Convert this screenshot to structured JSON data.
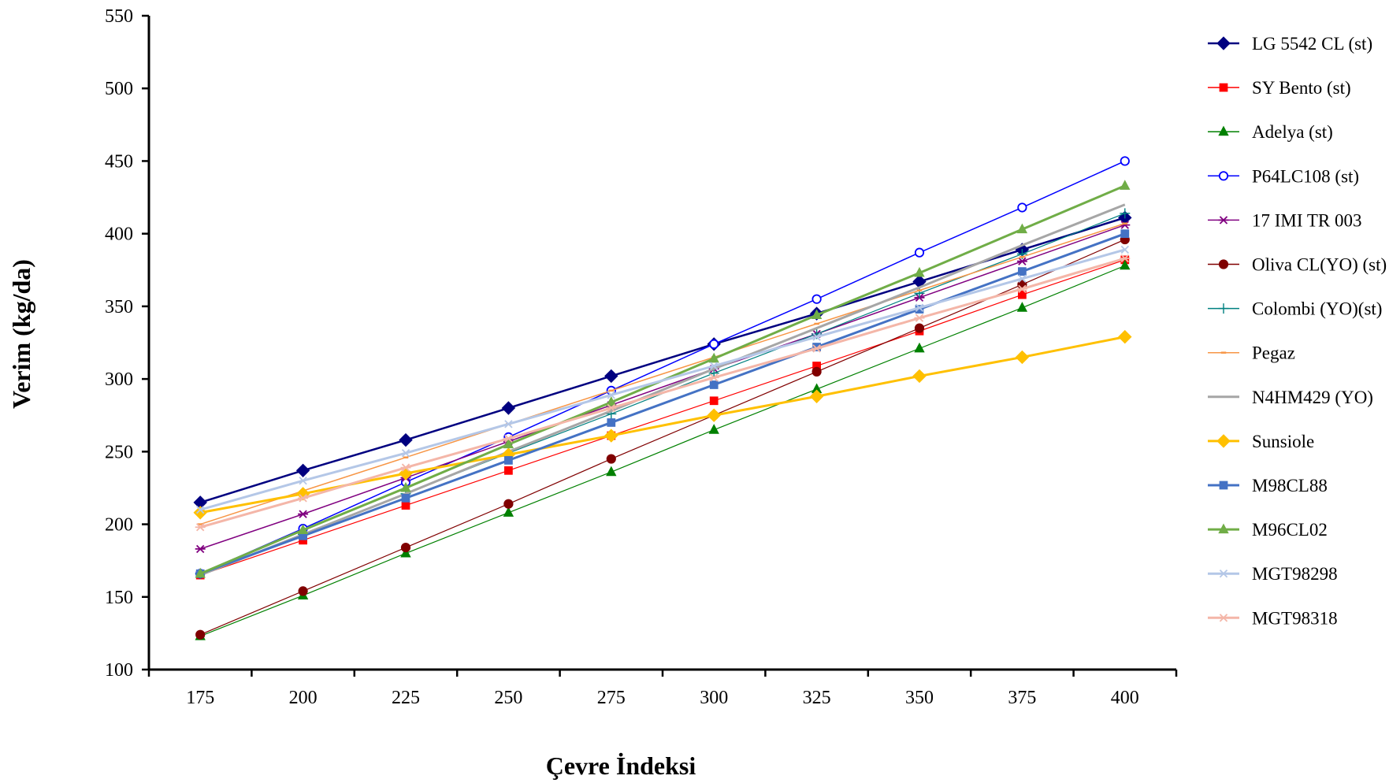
{
  "chart_data": {
    "type": "line",
    "title": "",
    "xlabel": "Çevre İndeksi",
    "ylabel": "Verim (kg/da)",
    "x": [
      175,
      200,
      225,
      250,
      275,
      300,
      325,
      350,
      375,
      400
    ],
    "ylim": [
      100,
      550
    ],
    "yticks": [
      100,
      150,
      200,
      250,
      300,
      350,
      400,
      450,
      500,
      550
    ],
    "grid": false,
    "legend_position": "right",
    "series": [
      {
        "name": "LG 5542 CL (st)",
        "color": "#000080",
        "marker": "diamond",
        "marker_fill": "filled",
        "width": 2.5,
        "values": [
          215,
          237,
          258,
          280,
          302,
          324,
          345,
          367,
          389,
          411
        ]
      },
      {
        "name": "SY Bento (st)",
        "color": "#FF0000",
        "marker": "square",
        "marker_fill": "filled",
        "width": 1.2,
        "values": [
          165,
          189,
          213,
          237,
          261,
          285,
          309,
          333,
          358,
          382
        ]
      },
      {
        "name": "Adelya (st)",
        "color": "#008000",
        "marker": "triangle",
        "marker_fill": "filled",
        "width": 1.2,
        "values": [
          123,
          151,
          180,
          208,
          236,
          265,
          293,
          321,
          349,
          378
        ]
      },
      {
        "name": "P64LC108 (st)",
        "color": "#0000FF",
        "marker": "circle",
        "marker_fill": "open",
        "width": 1.5,
        "values": [
          166,
          197,
          229,
          260,
          292,
          324,
          355,
          387,
          418,
          450
        ]
      },
      {
        "name": "17 IMI TR 003",
        "color": "#800080",
        "marker": "star",
        "marker_fill": "open",
        "width": 1.5,
        "values": [
          183,
          207,
          232,
          257,
          282,
          307,
          331,
          356,
          381,
          406
        ]
      },
      {
        "name": "Oliva CL(YO) (st)",
        "color": "#800000",
        "marker": "circle",
        "marker_fill": "filled",
        "width": 1.2,
        "values": [
          124,
          154,
          184,
          214,
          245,
          275,
          305,
          335,
          365,
          396
        ]
      },
      {
        "name": "Colombi (YO)(st)",
        "color": "#008080",
        "marker": "plus",
        "marker_fill": "open",
        "width": 1.2,
        "values": [
          166,
          193,
          221,
          249,
          276,
          304,
          331,
          359,
          386,
          414
        ]
      },
      {
        "name": "Pegaz",
        "color": "#F79646",
        "marker": "dash",
        "marker_fill": "filled",
        "width": 1.5,
        "values": [
          200,
          223,
          246,
          269,
          292,
          315,
          338,
          361,
          384,
          407
        ]
      },
      {
        "name": "N4HM429 (YO)",
        "color": "#A6A6A6",
        "marker": "line",
        "marker_fill": "open",
        "width": 3,
        "values": [
          165,
          193,
          221,
          250,
          278,
          307,
          335,
          363,
          392,
          420
        ]
      },
      {
        "name": "Sunsiole",
        "color": "#FFC000",
        "marker": "diamond",
        "marker_fill": "filled",
        "width": 3,
        "values": [
          208,
          221,
          235,
          248,
          261,
          275,
          288,
          302,
          315,
          329
        ]
      },
      {
        "name": "M98CL88",
        "color": "#4472C4",
        "marker": "square",
        "marker_fill": "filled",
        "width": 3,
        "values": [
          166,
          192,
          218,
          244,
          270,
          296,
          322,
          348,
          374,
          400
        ]
      },
      {
        "name": "M96CL02",
        "color": "#70AD47",
        "marker": "triangle",
        "marker_fill": "filled",
        "width": 3,
        "values": [
          166,
          196,
          225,
          255,
          284,
          314,
          344,
          373,
          403,
          433
        ]
      },
      {
        "name": "MGT98298",
        "color": "#B4C7E7",
        "marker": "x",
        "marker_fill": "open",
        "width": 3,
        "values": [
          210,
          230,
          249,
          269,
          289,
          309,
          329,
          349,
          369,
          389
        ]
      },
      {
        "name": "MGT98318",
        "color": "#F4B6A8",
        "marker": "star",
        "marker_fill": "open",
        "width": 3,
        "values": [
          198,
          218,
          239,
          259,
          280,
          301,
          321,
          342,
          362,
          383
        ]
      }
    ]
  }
}
